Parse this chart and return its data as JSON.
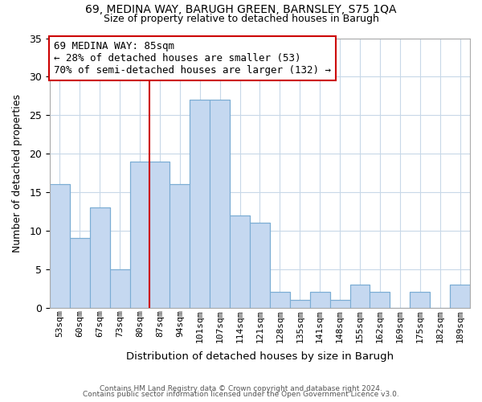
{
  "title1": "69, MEDINA WAY, BARUGH GREEN, BARNSLEY, S75 1QA",
  "title2": "Size of property relative to detached houses in Barugh",
  "xlabel": "Distribution of detached houses by size in Barugh",
  "ylabel": "Number of detached properties",
  "bar_labels": [
    "53sqm",
    "60sqm",
    "67sqm",
    "73sqm",
    "80sqm",
    "87sqm",
    "94sqm",
    "101sqm",
    "107sqm",
    "114sqm",
    "121sqm",
    "128sqm",
    "135sqm",
    "141sqm",
    "148sqm",
    "155sqm",
    "162sqm",
    "169sqm",
    "175sqm",
    "182sqm",
    "189sqm"
  ],
  "bar_values": [
    16,
    9,
    13,
    5,
    19,
    19,
    16,
    27,
    27,
    12,
    11,
    2,
    1,
    2,
    1,
    3,
    2,
    0,
    2,
    0,
    3
  ],
  "bar_color": "#c5d8f0",
  "bar_edge_color": "#7badd4",
  "vline_color": "#cc0000",
  "vline_x_index": 5,
  "annotation_text": "69 MEDINA WAY: 85sqm\n← 28% of detached houses are smaller (53)\n70% of semi-detached houses are larger (132) →",
  "annotation_box_color": "#ffffff",
  "annotation_box_edge": "#cc0000",
  "ylim": [
    0,
    35
  ],
  "yticks": [
    0,
    5,
    10,
    15,
    20,
    25,
    30,
    35
  ],
  "footer1": "Contains HM Land Registry data © Crown copyright and database right 2024.",
  "footer2": "Contains public sector information licensed under the Open Government Licence v3.0.",
  "background_color": "#ffffff",
  "grid_color": "#c8d8e8"
}
